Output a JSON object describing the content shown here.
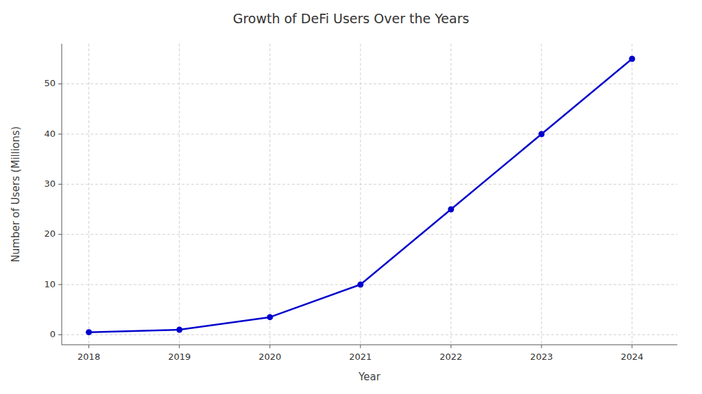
{
  "chart_data": {
    "type": "line",
    "title": "Growth of DeFi Users Over the Years",
    "xlabel": "Year",
    "ylabel": "Number of Users (Millions)",
    "x": [
      2018,
      2019,
      2020,
      2021,
      2022,
      2023,
      2024
    ],
    "values": [
      0.5,
      1.0,
      3.5,
      10.0,
      25.0,
      40.0,
      55.0
    ],
    "color": "#0000CD",
    "marker": "circle",
    "line_style": "solid",
    "xlim": [
      2017.7,
      2024.5
    ],
    "xticks": [
      2018,
      2019,
      2020,
      2021,
      2022,
      2023,
      2024
    ],
    "ylim": [
      -2,
      58
    ],
    "yticks": [
      0,
      10,
      20,
      30,
      40,
      50
    ],
    "grid": true
  }
}
